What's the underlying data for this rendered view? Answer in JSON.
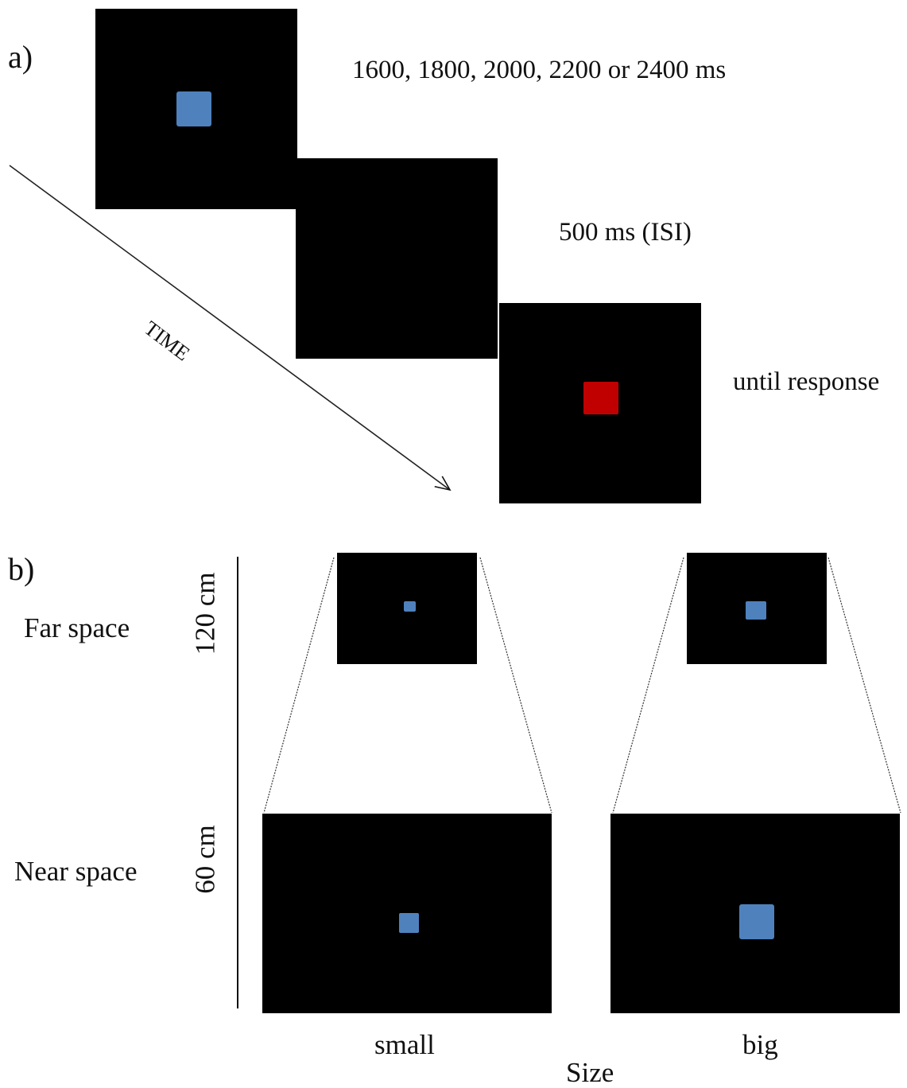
{
  "panel_a": {
    "letter": "a)",
    "durations": [
      "1600, 1800, 2000, 2200 or 2400 ms",
      "500 ms (ISI)",
      "until response"
    ],
    "time_label": "TIME",
    "stimulus_colors": {
      "cue": "#4f81bd",
      "target": "#c00000"
    }
  },
  "panel_b": {
    "letter": "b)",
    "rows": [
      "Far space",
      "Near space"
    ],
    "distances": [
      "120 cm",
      "60 cm"
    ],
    "sizes": [
      "small",
      "big"
    ],
    "size_label": "Size",
    "stimulus_color": "#4f81bd"
  }
}
